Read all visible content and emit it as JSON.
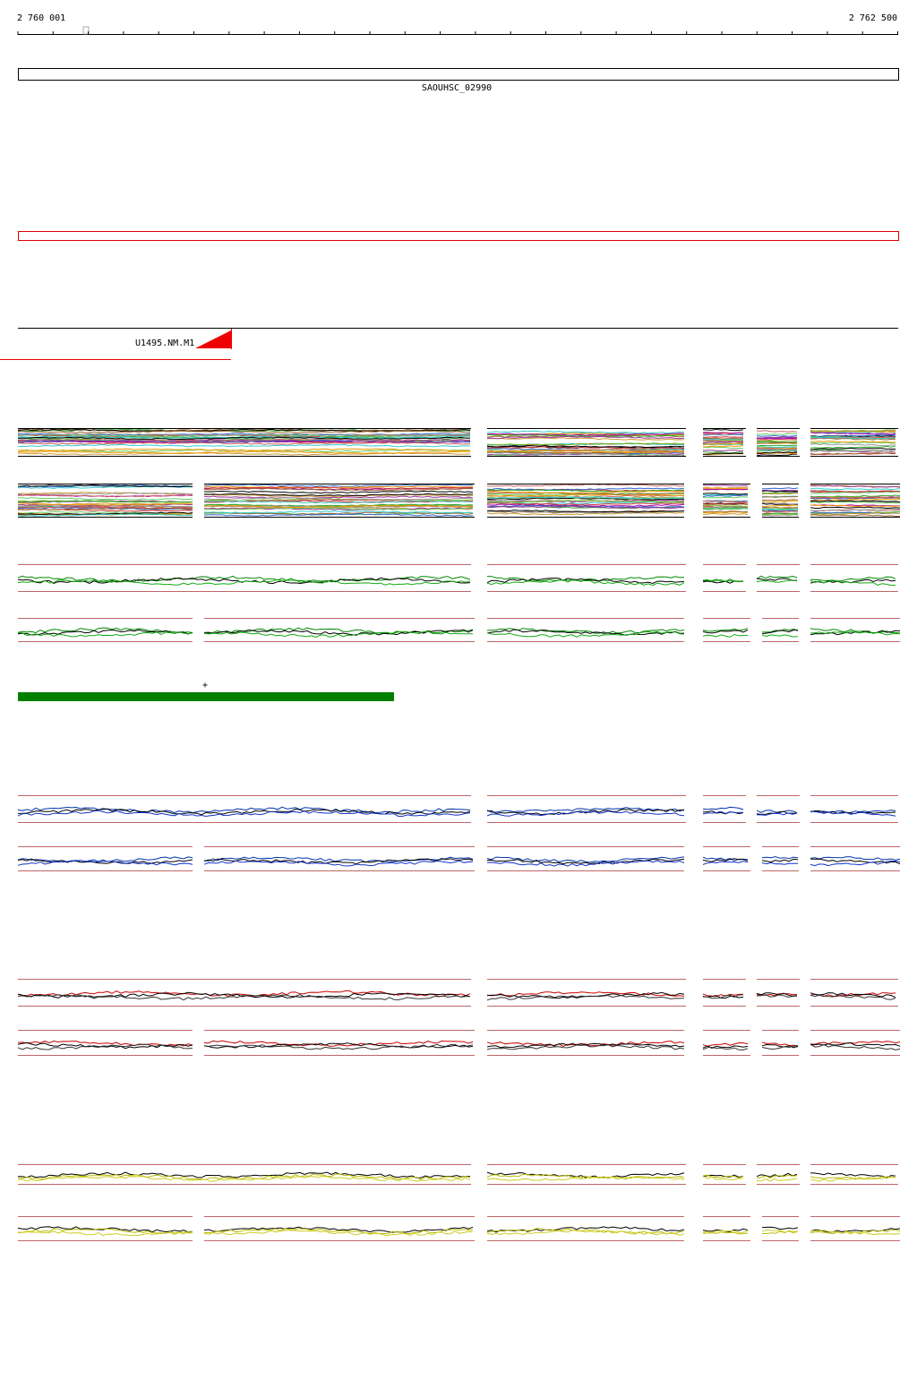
{
  "ruler": {
    "start": "2 760 001",
    "end": "2 762 500"
  },
  "gene": {
    "label": "SAOUHSC_02990"
  },
  "feature": {
    "label": "U1495.NM.M1"
  },
  "strand": "+"
}
